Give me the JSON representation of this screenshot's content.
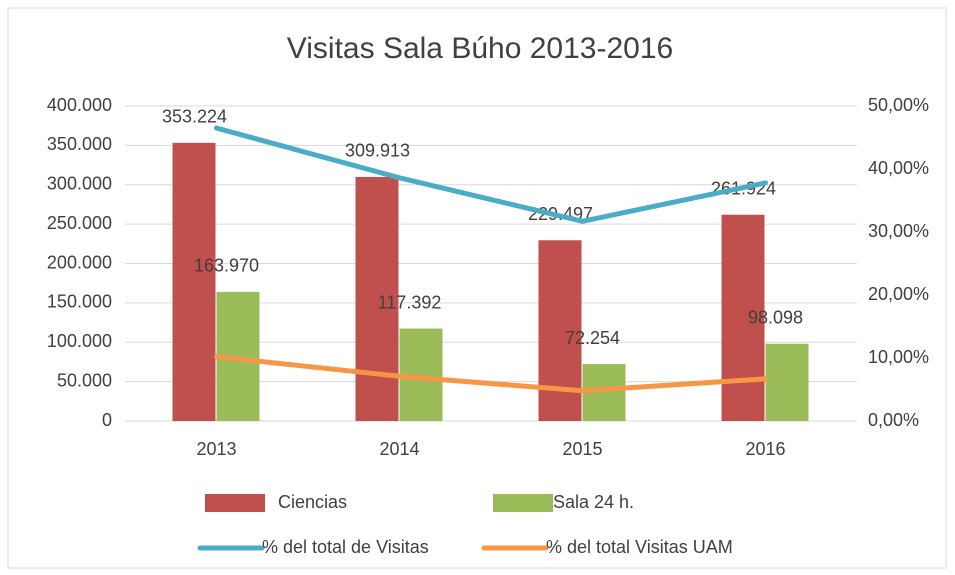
{
  "chart_data": {
    "type": "bar",
    "title": "Visitas Sala Búho 2013-2016",
    "categories": [
      "2013",
      "2014",
      "2015",
      "2016"
    ],
    "series": [
      {
        "name": "Ciencias",
        "type": "bar",
        "color": "#c0504d",
        "values": [
          353224,
          309913,
          229497,
          261924
        ],
        "value_labels": [
          "353.224",
          "309.913",
          "229.497",
          "261.924"
        ]
      },
      {
        "name": "Sala 24 h.",
        "type": "bar",
        "color": "#9bbb59",
        "values": [
          163970,
          117392,
          72254,
          98098
        ],
        "value_labels": [
          "163.970",
          "117.392",
          "72.254",
          "98.098"
        ]
      },
      {
        "name": "% del total de Visitas",
        "type": "line",
        "axis": "y2",
        "color": "#4bacc6",
        "values": [
          46.5,
          38.6,
          31.7,
          37.8
        ]
      },
      {
        "name": "% del total Visitas UAM",
        "type": "line",
        "axis": "y2",
        "color": "#f79646",
        "values": [
          10.2,
          7.1,
          4.8,
          6.7
        ]
      }
    ],
    "ylim": [
      0,
      400000
    ],
    "yticks": [
      0,
      {
        "value": 50000,
        "label": "50.000"
      },
      {
        "value": 100000,
        "label": "100.000"
      },
      {
        "value": 150000,
        "label": "150.000"
      },
      {
        "value": 200000,
        "label": "200.000"
      },
      {
        "value": 250000,
        "label": "250.000"
      },
      {
        "value": 300000,
        "label": "300.000"
      },
      {
        "value": 350000,
        "label": "350.000"
      },
      {
        "value": 400000,
        "label": "400.000"
      }
    ],
    "y2lim": [
      0,
      50
    ],
    "y2ticks": [
      {
        "value": 0,
        "label": "0,00%"
      },
      {
        "value": 10,
        "label": "10,00%"
      },
      {
        "value": 20,
        "label": "20,00%"
      },
      {
        "value": 30,
        "label": "30,00%"
      },
      {
        "value": 40,
        "label": "40,00%"
      },
      {
        "value": 50,
        "label": "50,00%"
      }
    ],
    "grid": true,
    "legend": "bottom"
  }
}
